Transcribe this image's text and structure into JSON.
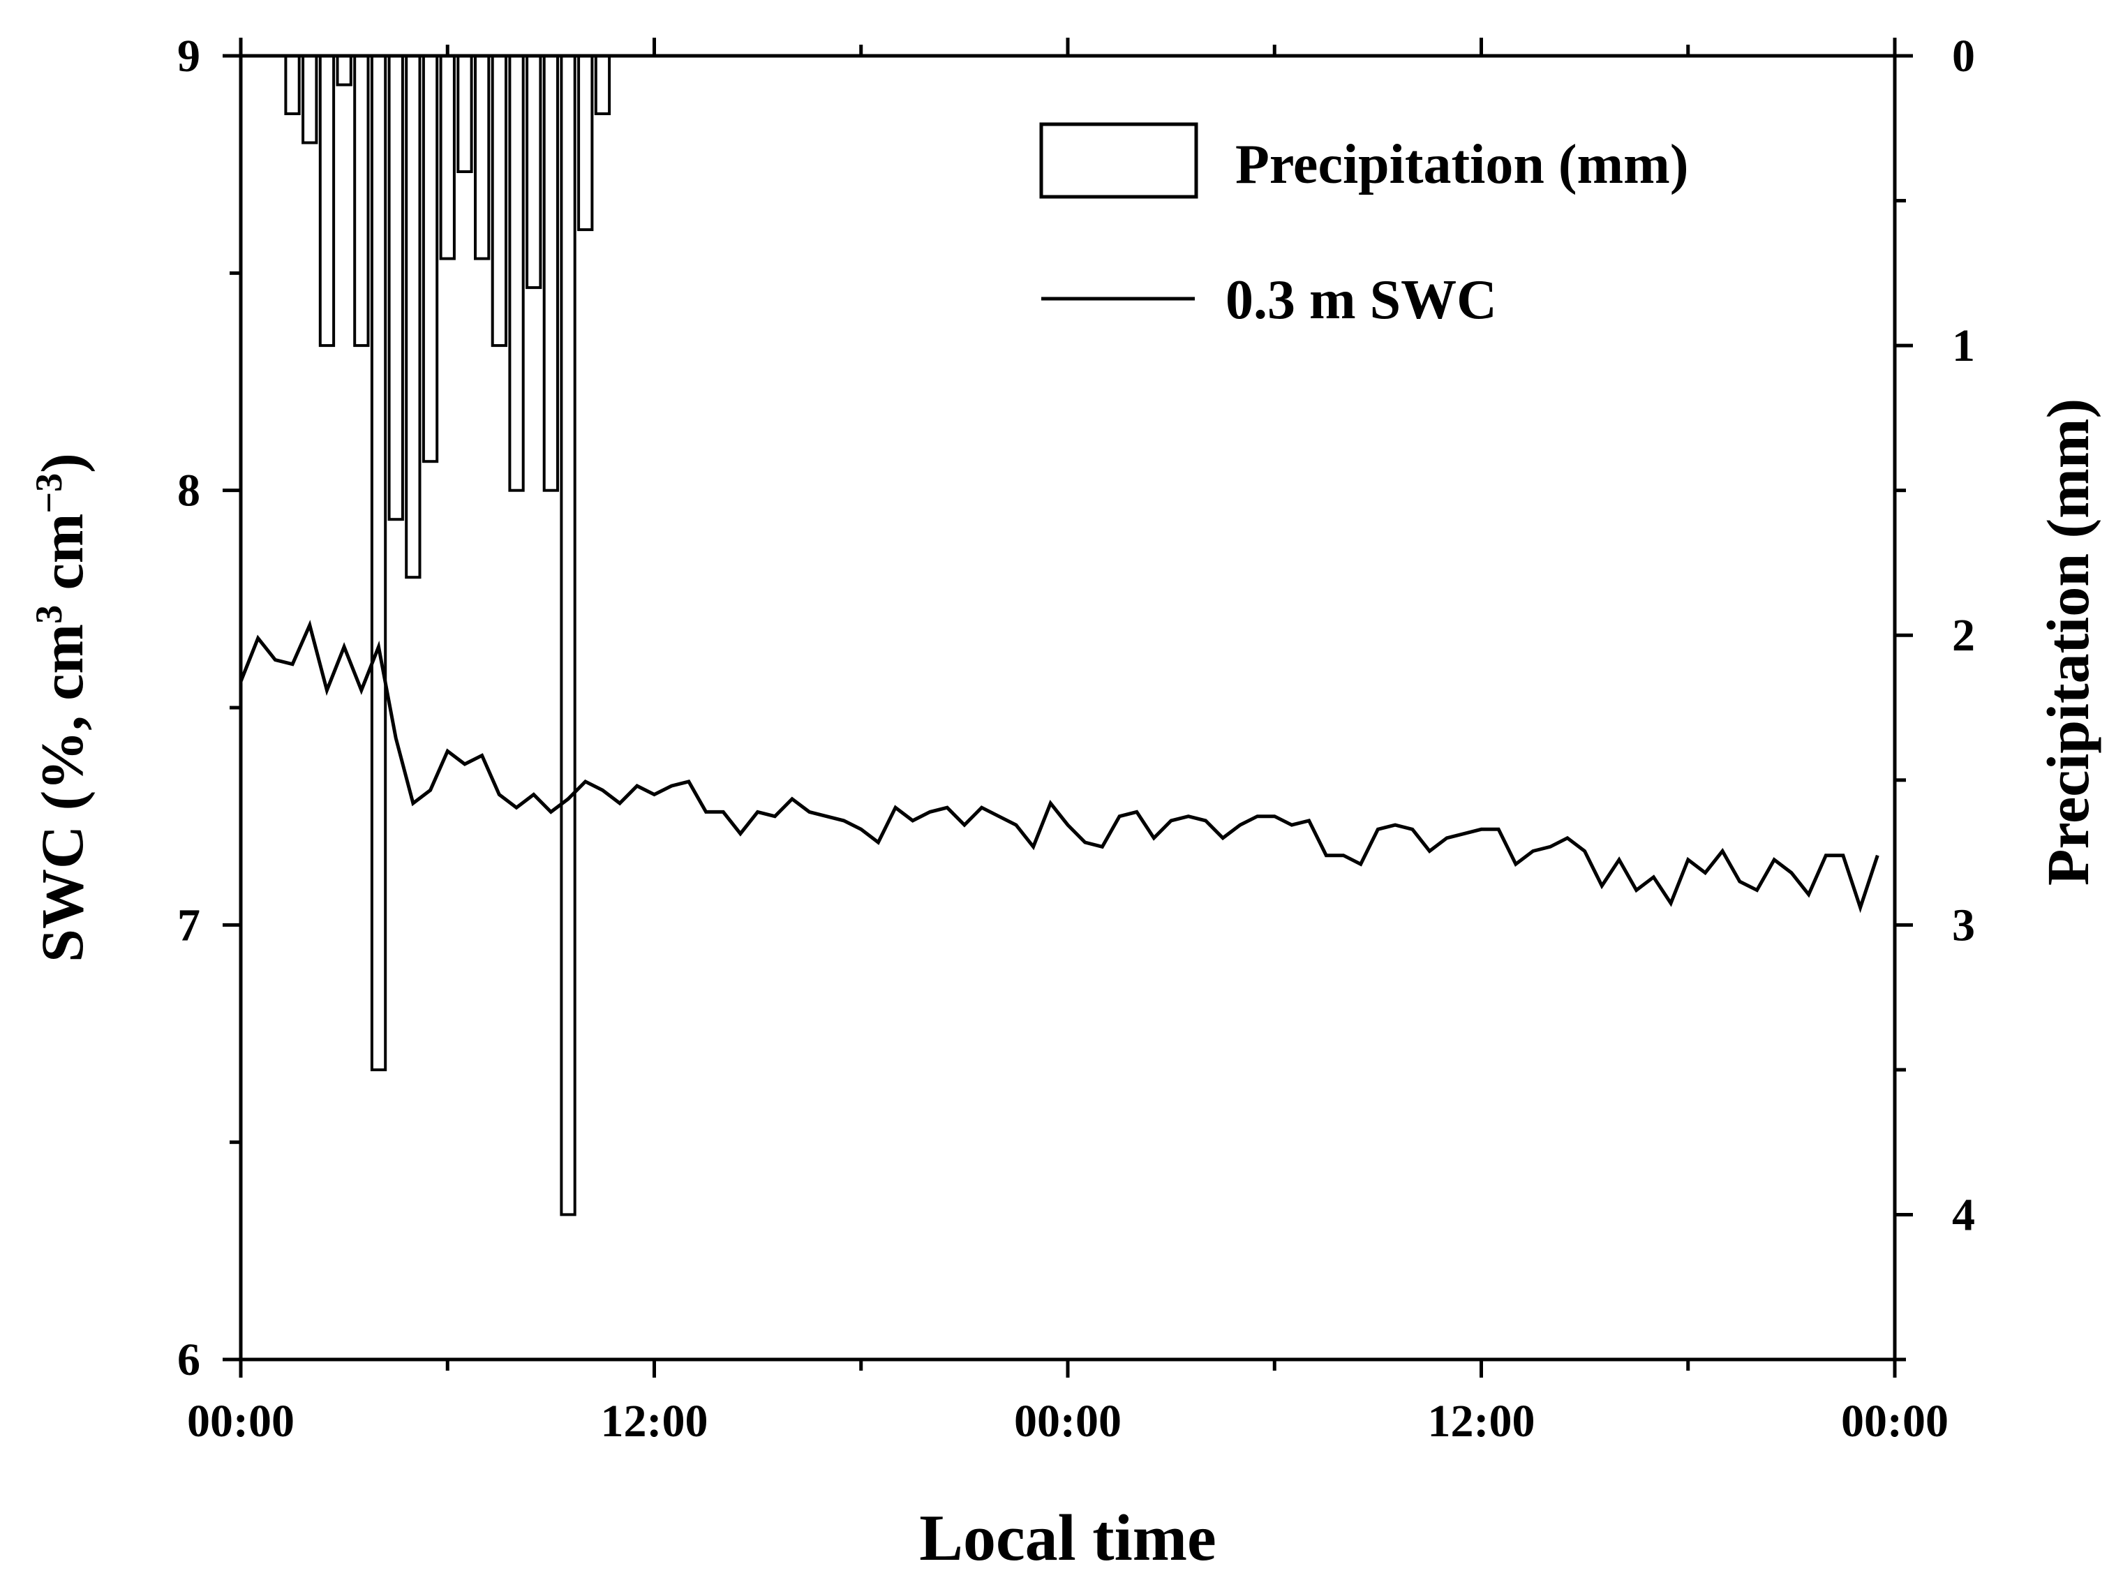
{
  "chart_data": {
    "type": "bar+line",
    "title": "",
    "xlabel": "Local time",
    "ylabel_left": "SWC (%, cm",
    "ylabel_left_sup1": "3",
    "ylabel_left_mid": " cm",
    "ylabel_left_sup2": "−3",
    "ylabel_left_end": ")",
    "ylabel_right": "Precipitation (mm)",
    "x_ticks": [
      "00:00",
      "12:00",
      "00:00",
      "12:00",
      "00:00"
    ],
    "xlim_hours": [
      0,
      48
    ],
    "ylim_left": [
      6,
      9
    ],
    "y_left_ticks": [
      "6",
      "7",
      "8",
      "9"
    ],
    "ylim_right_inverted": [
      0,
      4.5
    ],
    "y_right_ticks": [
      "0",
      "1",
      "2",
      "3",
      "4"
    ],
    "legend": [
      {
        "label": "Precipitation (mm)",
        "kind": "bar"
      },
      {
        "label": "0.3 m SWC",
        "kind": "line"
      }
    ],
    "legend_position": "top-right",
    "precipitation_mm": {
      "x_hours": [
        1.5,
        2.0,
        2.5,
        3.0,
        3.5,
        4.0,
        4.5,
        5.0,
        5.5,
        6.0,
        6.5,
        7.0,
        7.5,
        8.0,
        8.5,
        9.0,
        9.5,
        10.0,
        10.5
      ],
      "values": [
        0.2,
        0.3,
        1.0,
        0.1,
        1.0,
        3.5,
        1.6,
        1.8,
        1.4,
        0.7,
        0.4,
        0.7,
        1.0,
        1.5,
        0.8,
        1.5,
        4.0,
        0.6,
        0.2
      ]
    },
    "swc_0_3m": {
      "name": "0.3 m SWC",
      "x_hours": [
        0,
        0.5,
        1,
        1.5,
        2,
        2.5,
        3,
        3.5,
        4,
        4.5,
        5,
        5.5,
        6,
        6.5,
        7,
        7.5,
        8,
        8.5,
        9,
        9.5,
        10,
        10.5,
        11,
        11.5,
        12,
        12.5,
        13,
        13.5,
        14,
        14.5,
        15,
        15.5,
        16,
        16.5,
        17,
        17.5,
        18,
        18.5,
        19,
        19.5,
        20,
        20.5,
        21,
        21.5,
        22,
        22.5,
        23,
        23.5,
        24,
        24.5,
        25,
        25.5,
        26,
        26.5,
        27,
        27.5,
        28,
        28.5,
        29,
        29.5,
        30,
        30.5,
        31,
        31.5,
        32,
        32.5,
        33,
        33.5,
        34,
        34.5,
        35,
        35.5,
        36,
        36.5,
        37,
        37.5,
        38,
        38.5,
        39,
        39.5,
        40,
        40.5,
        41,
        41.5,
        42,
        42.5,
        43,
        43.5,
        44,
        44.5,
        45,
        45.5,
        46,
        46.5,
        47,
        47.5
      ],
      "values": [
        7.56,
        7.66,
        7.61,
        7.6,
        7.69,
        7.54,
        7.64,
        7.54,
        7.64,
        7.43,
        7.28,
        7.31,
        7.4,
        7.37,
        7.39,
        7.3,
        7.27,
        7.3,
        7.26,
        7.29,
        7.33,
        7.31,
        7.28,
        7.32,
        7.3,
        7.32,
        7.33,
        7.26,
        7.26,
        7.21,
        7.26,
        7.25,
        7.29,
        7.26,
        7.25,
        7.24,
        7.22,
        7.19,
        7.27,
        7.24,
        7.26,
        7.27,
        7.23,
        7.27,
        7.25,
        7.23,
        7.18,
        7.28,
        7.23,
        7.19,
        7.18,
        7.25,
        7.26,
        7.2,
        7.24,
        7.25,
        7.24,
        7.2,
        7.23,
        7.25,
        7.25,
        7.23,
        7.24,
        7.16,
        7.16,
        7.14,
        7.22,
        7.23,
        7.22,
        7.17,
        7.2,
        7.21,
        7.22,
        7.22,
        7.14,
        7.17,
        7.18,
        7.2,
        7.17,
        7.09,
        7.15,
        7.08,
        7.11,
        7.05,
        7.15,
        7.12,
        7.17,
        7.1,
        7.08,
        7.15,
        7.12,
        7.07,
        7.16,
        7.16,
        7.04,
        7.16
      ]
    }
  }
}
